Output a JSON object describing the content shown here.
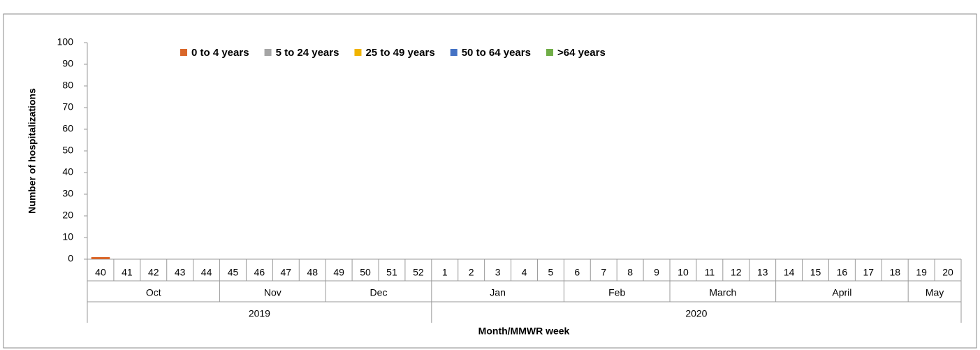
{
  "chart_data": {
    "type": "stacked_bar",
    "y_label": "Number of hospitalizations",
    "x_label": "Month/MMWR week",
    "categories": [
      "40",
      "41",
      "42",
      "43",
      "44",
      "45",
      "46",
      "47",
      "48",
      "49",
      "50",
      "51",
      "52",
      "1",
      "2",
      "3",
      "4",
      "5",
      "6",
      "7",
      "8",
      "9",
      "10",
      "11",
      "12",
      "13",
      "14",
      "15",
      "16",
      "17",
      "18",
      "19",
      "20"
    ],
    "months": [
      "Oct",
      "Oct",
      "Oct",
      "Oct",
      "Oct",
      "Nov",
      "Nov",
      "Nov",
      "Nov",
      "Dec",
      "Dec",
      "Dec",
      "Dec",
      "Jan",
      "Jan",
      "Jan",
      "Jan",
      "Jan",
      "Feb",
      "Feb",
      "Feb",
      "Feb",
      "March",
      "March",
      "March",
      "March",
      "April",
      "April",
      "April",
      "April",
      "April",
      "May",
      "May"
    ],
    "years": [
      "2019",
      "2019",
      "2019",
      "2019",
      "2019",
      "2019",
      "2019",
      "2019",
      "2019",
      "2019",
      "2019",
      "2019",
      "2019",
      "2020",
      "2020",
      "2020",
      "2020",
      "2020",
      "2020",
      "2020",
      "2020",
      "2020",
      "2020",
      "2020",
      "2020",
      "2020",
      "2020",
      "2020",
      "2020",
      "2020",
      "2020",
      "2020",
      "2020"
    ],
    "series": [
      {
        "name": "0 to 4 years",
        "color": "#d9672a",
        "values": [
          1,
          0,
          0,
          0,
          0,
          0,
          0,
          0,
          0,
          0,
          0,
          0,
          0,
          0,
          0,
          0,
          0,
          0,
          0,
          0,
          0,
          0,
          0,
          0,
          0,
          0,
          0,
          0,
          0,
          0,
          0,
          0,
          0
        ]
      },
      {
        "name": "5 to 24 years",
        "color": "#a5a5a5",
        "values": [
          0,
          0,
          0,
          0,
          0,
          0,
          0,
          0,
          0,
          0,
          0,
          0,
          0,
          0,
          0,
          0,
          0,
          0,
          0,
          0,
          0,
          0,
          0,
          0,
          0,
          0,
          0,
          0,
          0,
          0,
          0,
          0,
          0
        ]
      },
      {
        "name": "25 to 49 years",
        "color": "#f0b400",
        "values": [
          0,
          0,
          0,
          0,
          0,
          0,
          0,
          0,
          0,
          0,
          0,
          0,
          0,
          0,
          0,
          0,
          0,
          0,
          0,
          0,
          0,
          0,
          0,
          0,
          0,
          0,
          0,
          0,
          0,
          0,
          0,
          0,
          0
        ]
      },
      {
        "name": "50 to 64 years",
        "color": "#4472c4",
        "values": [
          0,
          0,
          0,
          0,
          0,
          0,
          0,
          0,
          0,
          0,
          0,
          0,
          0,
          0,
          0,
          0,
          0,
          0,
          0,
          0,
          0,
          0,
          0,
          0,
          0,
          0,
          0,
          0,
          0,
          0,
          0,
          0,
          0
        ]
      },
      {
        "name": ">64 years",
        "color": "#70ad47",
        "values": [
          0,
          0,
          0,
          0,
          0,
          0,
          0,
          0,
          0,
          0,
          0,
          0,
          0,
          0,
          0,
          0,
          0,
          0,
          0,
          0,
          0,
          0,
          0,
          0,
          0,
          0,
          0,
          0,
          0,
          0,
          0,
          0,
          0
        ]
      }
    ],
    "ylim": [
      0,
      100
    ],
    "yticks": [
      0,
      10,
      20,
      30,
      40,
      50,
      60,
      70,
      80,
      90,
      100
    ],
    "legend": "top"
  }
}
